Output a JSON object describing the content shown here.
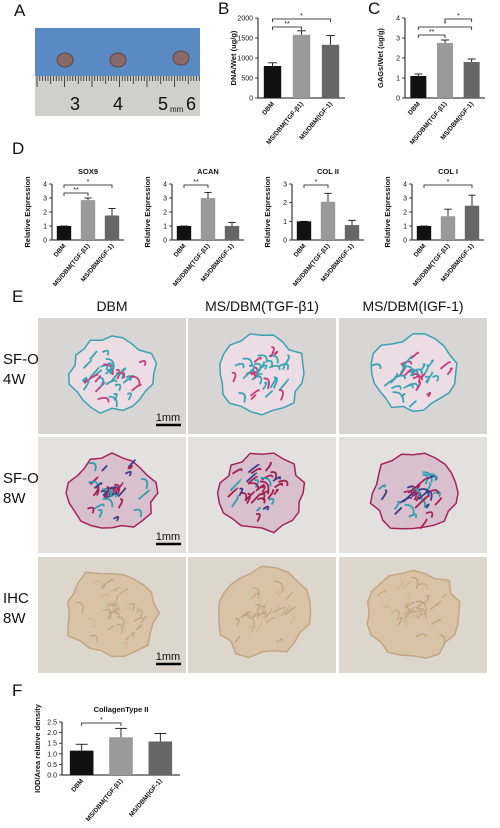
{
  "panel_labels": [
    "A",
    "B",
    "C",
    "D",
    "E",
    "F"
  ],
  "panel_a": {
    "ruler_labels": [
      "3",
      "4",
      "5",
      "6"
    ],
    "unit": "mm"
  },
  "panel_e": {
    "columns": [
      "DBM",
      "MS/DBM(TGF-β1)",
      "MS/DBM(IGF-1)"
    ],
    "rows": [
      [
        "SF-O",
        "4W"
      ],
      [
        "SF-O",
        "8W"
      ],
      [
        "IHC",
        "8W"
      ]
    ],
    "scale_bar": "1mm"
  },
  "chart_data": [
    {
      "type": "bar",
      "ylabel": "DNA/Wet (ug/g)",
      "categories": [
        "DBM",
        "MS/DBM(TGF-β1)",
        "MS/DBM(IGF-1)"
      ],
      "values": [
        800,
        1580,
        1330
      ],
      "errors": [
        80,
        100,
        230
      ],
      "colors": [
        "#111111",
        "#9a9a9a",
        "#666666"
      ],
      "ylim": [
        0,
        2000
      ],
      "yticks": [
        0,
        500,
        1000,
        1500,
        2000
      ],
      "significance": [
        {
          "from": 0,
          "to": 2,
          "label": "*"
        },
        {
          "from": 0,
          "to": 1,
          "label": "**"
        }
      ]
    },
    {
      "type": "bar",
      "ylabel": "GAGs/Wet (ug/g)",
      "categories": [
        "DBM",
        "MS/DBM(TGF-β1)",
        "MS/DBM(IGF-1)"
      ],
      "values": [
        1.1,
        2.75,
        1.8
      ],
      "errors": [
        0.1,
        0.15,
        0.15
      ],
      "colors": [
        "#111111",
        "#9a9a9a",
        "#666666"
      ],
      "ylim": [
        0,
        4
      ],
      "yticks": [
        0,
        1,
        2,
        3,
        4
      ],
      "significance": [
        {
          "from": 1,
          "to": 2,
          "label": "*"
        },
        {
          "from": 0,
          "to": 2,
          "label": "*"
        },
        {
          "from": 0,
          "to": 1,
          "label": "**"
        }
      ]
    },
    {
      "type": "bar",
      "title": "SOX9",
      "ylabel": "Relative Expression",
      "categories": [
        "DBM",
        "MS/DBM(TGF-β1)",
        "MS/DBM(IGF-1)"
      ],
      "values": [
        1,
        2.85,
        1.75
      ],
      "errors": [
        0,
        0.15,
        0.5
      ],
      "colors": [
        "#111111",
        "#9a9a9a",
        "#666666"
      ],
      "ylim": [
        0,
        4
      ],
      "yticks": [
        0,
        1,
        2,
        3,
        4
      ],
      "significance": [
        {
          "from": 0,
          "to": 2,
          "label": "*"
        },
        {
          "from": 0,
          "to": 1,
          "label": "**"
        }
      ]
    },
    {
      "type": "bar",
      "title": "ACAN",
      "ylabel": "Relative Expression",
      "categories": [
        "DBM",
        "MS/DBM(TGF-β1)",
        "MS/DBM(IGF-1)"
      ],
      "values": [
        1,
        3.0,
        1.0
      ],
      "errors": [
        0,
        0.4,
        0.25
      ],
      "colors": [
        "#111111",
        "#9a9a9a",
        "#666666"
      ],
      "ylim": [
        0,
        4
      ],
      "yticks": [
        0,
        1,
        2,
        3,
        4
      ],
      "significance": [
        {
          "from": 0,
          "to": 1,
          "label": "**"
        }
      ]
    },
    {
      "type": "bar",
      "title": "COL II",
      "ylabel": "Relative Expression",
      "categories": [
        "DBM",
        "MS/DBM(TGF-β1)",
        "MS/DBM(IGF-1)"
      ],
      "values": [
        1,
        2.05,
        0.8
      ],
      "errors": [
        0,
        0.45,
        0.25
      ],
      "colors": [
        "#111111",
        "#9a9a9a",
        "#666666"
      ],
      "ylim": [
        0,
        3
      ],
      "yticks": [
        0,
        1,
        2,
        3
      ],
      "significance": [
        {
          "from": 0,
          "to": 1,
          "label": "*"
        }
      ]
    },
    {
      "type": "bar",
      "title": "COL I",
      "ylabel": "Relative Expression",
      "categories": [
        "DBM",
        "MS/DBM(TGF-β1)",
        "MS/DBM(IGF-1)"
      ],
      "values": [
        1,
        1.7,
        2.45
      ],
      "errors": [
        0,
        0.5,
        0.75
      ],
      "colors": [
        "#111111",
        "#9a9a9a",
        "#666666"
      ],
      "ylim": [
        0,
        4
      ],
      "yticks": [
        0,
        1,
        2,
        3,
        4
      ],
      "significance": [
        {
          "from": 0,
          "to": 2,
          "label": "*"
        }
      ]
    },
    {
      "type": "bar",
      "title": "CollagenType II",
      "ylabel": "IOD/Area relative density",
      "categories": [
        "DBM",
        "MS/DBM(TGF-β1)",
        "MS/DBM(IGF-1)"
      ],
      "values": [
        1.15,
        1.78,
        1.58
      ],
      "errors": [
        0.3,
        0.42,
        0.38
      ],
      "colors": [
        "#111111",
        "#9a9a9a",
        "#666666"
      ],
      "ylim": [
        0,
        2.5
      ],
      "yticks": [
        {
          "value": 0,
          "label": "0.0"
        },
        0.5,
        {
          "value": 1,
          "label": "1.0"
        },
        1.5,
        {
          "value": 2,
          "label": "2.0"
        },
        2.5
      ],
      "significance": [
        {
          "from": 0,
          "to": 1,
          "label": "*"
        }
      ]
    }
  ]
}
